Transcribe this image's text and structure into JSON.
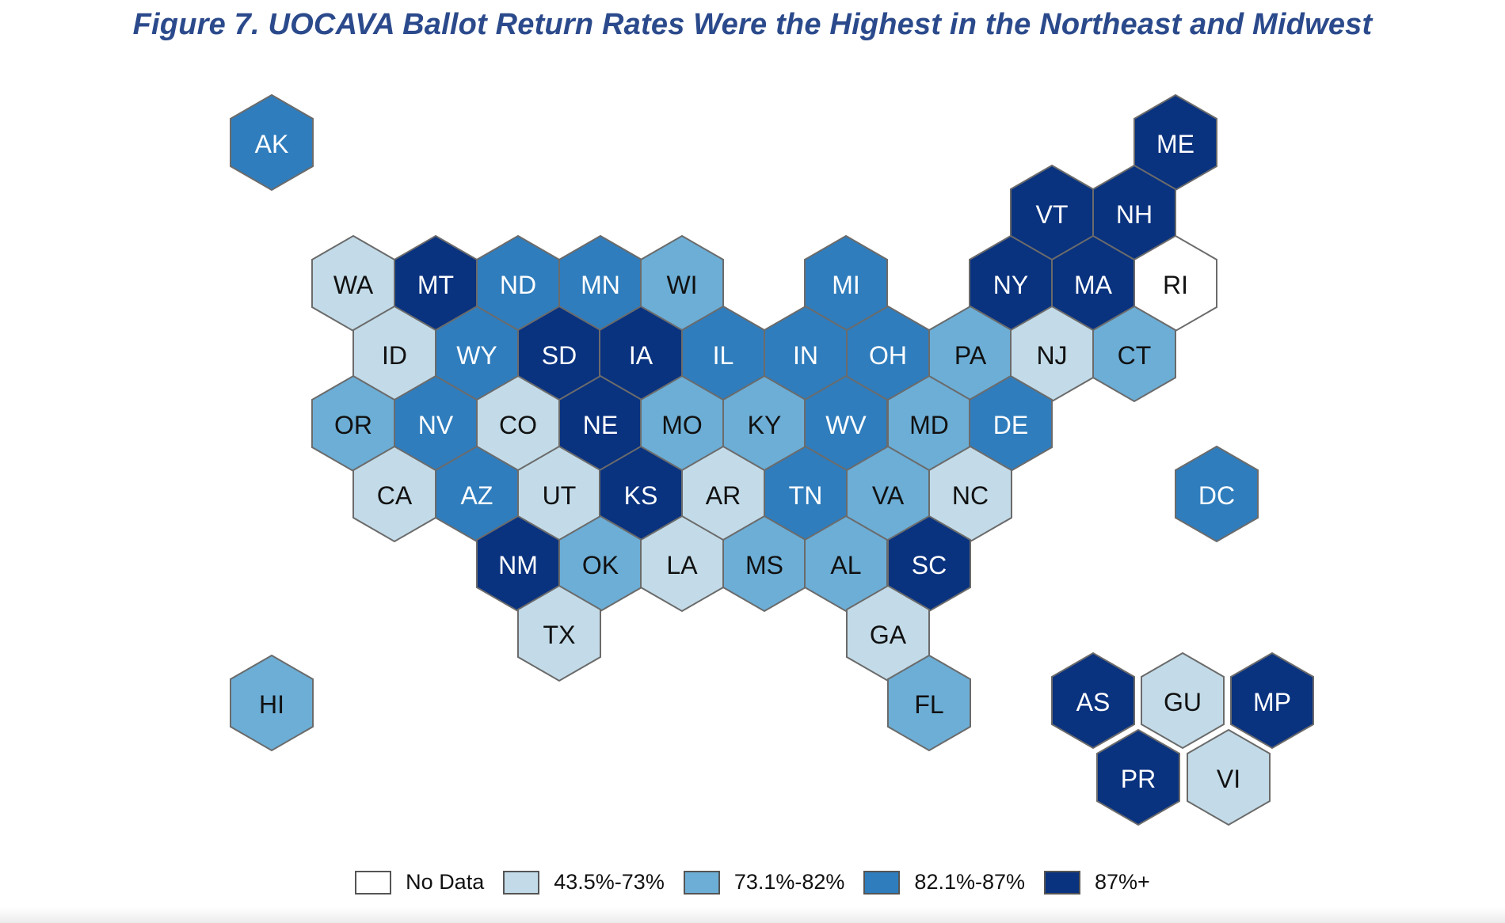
{
  "title": "Figure 7. UOCAVA Ballot Return Rates Were the Highest in the Northeast and Midwest",
  "legend": [
    {
      "key": "nodata",
      "label": "No Data",
      "color": "#ffffff"
    },
    {
      "key": "c1",
      "label": "43.5%-73%",
      "color": "#c3dbe8"
    },
    {
      "key": "c2",
      "label": "73.1%-82%",
      "color": "#6caed6"
    },
    {
      "key": "c3",
      "label": "82.1%-87%",
      "color": "#2f7dbd"
    },
    {
      "key": "c4",
      "label": "87%+",
      "color": "#09327f"
    }
  ],
  "states": [
    {
      "abbr": "AK",
      "cat": "c3"
    },
    {
      "abbr": "ME",
      "cat": "c4"
    },
    {
      "abbr": "VT",
      "cat": "c4"
    },
    {
      "abbr": "NH",
      "cat": "c4"
    },
    {
      "abbr": "WA",
      "cat": "c1"
    },
    {
      "abbr": "MT",
      "cat": "c4"
    },
    {
      "abbr": "ND",
      "cat": "c3"
    },
    {
      "abbr": "MN",
      "cat": "c3"
    },
    {
      "abbr": "WI",
      "cat": "c2"
    },
    {
      "abbr": "MI",
      "cat": "c3"
    },
    {
      "abbr": "NY",
      "cat": "c4"
    },
    {
      "abbr": "MA",
      "cat": "c4"
    },
    {
      "abbr": "RI",
      "cat": "nodata"
    },
    {
      "abbr": "ID",
      "cat": "c1"
    },
    {
      "abbr": "WY",
      "cat": "c3"
    },
    {
      "abbr": "SD",
      "cat": "c4"
    },
    {
      "abbr": "IA",
      "cat": "c4"
    },
    {
      "abbr": "IL",
      "cat": "c3"
    },
    {
      "abbr": "IN",
      "cat": "c3"
    },
    {
      "abbr": "OH",
      "cat": "c3"
    },
    {
      "abbr": "PA",
      "cat": "c2"
    },
    {
      "abbr": "NJ",
      "cat": "c1"
    },
    {
      "abbr": "CT",
      "cat": "c2"
    },
    {
      "abbr": "OR",
      "cat": "c2"
    },
    {
      "abbr": "NV",
      "cat": "c3"
    },
    {
      "abbr": "CO",
      "cat": "c1"
    },
    {
      "abbr": "NE",
      "cat": "c4"
    },
    {
      "abbr": "MO",
      "cat": "c2"
    },
    {
      "abbr": "KY",
      "cat": "c2"
    },
    {
      "abbr": "WV",
      "cat": "c3"
    },
    {
      "abbr": "MD",
      "cat": "c2"
    },
    {
      "abbr": "DE",
      "cat": "c3"
    },
    {
      "abbr": "CA",
      "cat": "c1"
    },
    {
      "abbr": "AZ",
      "cat": "c3"
    },
    {
      "abbr": "UT",
      "cat": "c1"
    },
    {
      "abbr": "KS",
      "cat": "c4"
    },
    {
      "abbr": "AR",
      "cat": "c1"
    },
    {
      "abbr": "TN",
      "cat": "c3"
    },
    {
      "abbr": "VA",
      "cat": "c2"
    },
    {
      "abbr": "NC",
      "cat": "c1"
    },
    {
      "abbr": "DC",
      "cat": "c3"
    },
    {
      "abbr": "NM",
      "cat": "c4"
    },
    {
      "abbr": "OK",
      "cat": "c2"
    },
    {
      "abbr": "LA",
      "cat": "c1"
    },
    {
      "abbr": "MS",
      "cat": "c2"
    },
    {
      "abbr": "AL",
      "cat": "c2"
    },
    {
      "abbr": "SC",
      "cat": "c4"
    },
    {
      "abbr": "TX",
      "cat": "c1"
    },
    {
      "abbr": "GA",
      "cat": "c1"
    },
    {
      "abbr": "HI",
      "cat": "c2"
    },
    {
      "abbr": "FL",
      "cat": "c2"
    },
    {
      "abbr": "AS",
      "cat": "c4"
    },
    {
      "abbr": "GU",
      "cat": "c1"
    },
    {
      "abbr": "MP",
      "cat": "c4"
    },
    {
      "abbr": "PR",
      "cat": "c4"
    },
    {
      "abbr": "VI",
      "cat": "c1"
    }
  ]
}
